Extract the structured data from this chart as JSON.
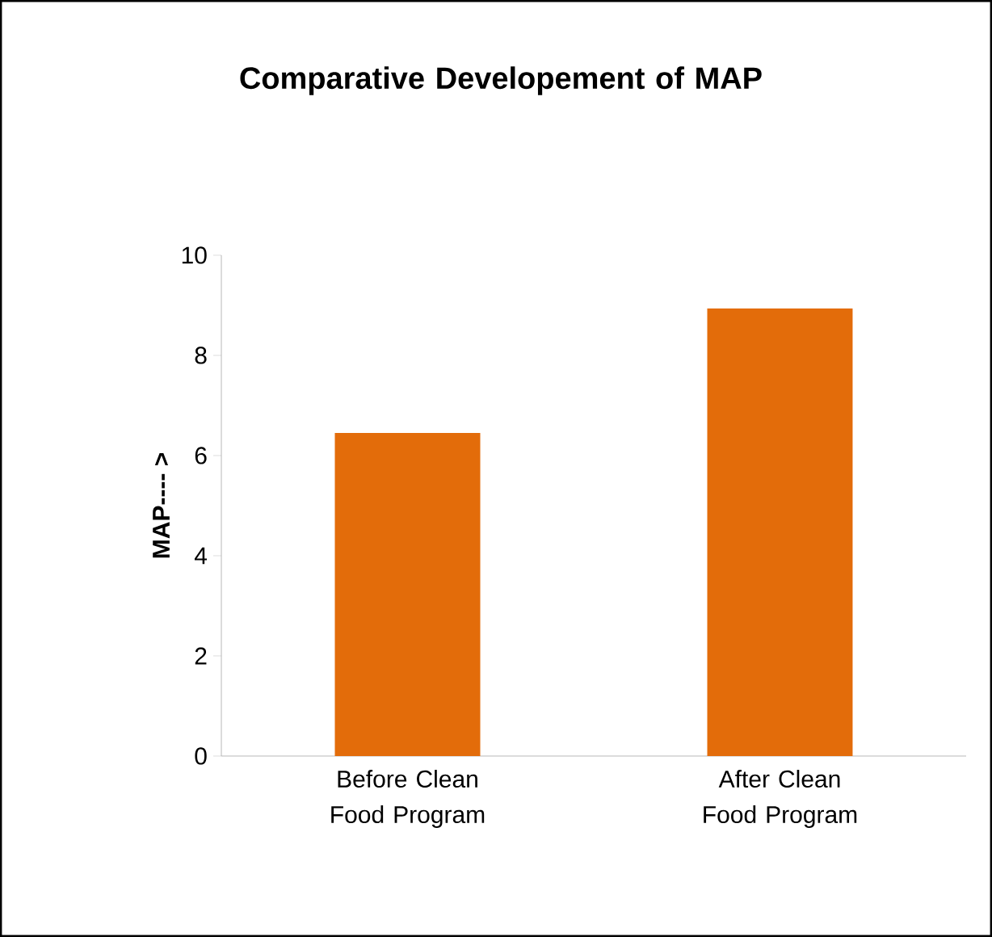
{
  "chart_data": {
    "type": "bar",
    "title": "Comparative Developement of MAP",
    "ylabel": "MAP---- >",
    "categories": [
      "Before Clean Food Program",
      "After Clean Food Program"
    ],
    "values": [
      6.45,
      8.94
    ],
    "color": "#e36c0a",
    "ylim": [
      0,
      10
    ],
    "yticks": [
      0,
      2,
      4,
      6,
      8,
      10
    ],
    "grid": false
  }
}
